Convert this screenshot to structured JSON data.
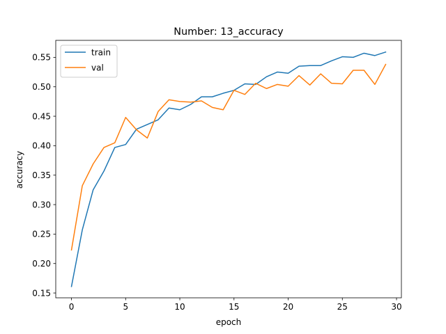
{
  "chart_data": {
    "type": "line",
    "title": "Number: 13_accuracy",
    "xlabel": "epoch",
    "ylabel": "accuracy",
    "xlim": [
      -1.45,
      30.45
    ],
    "ylim": [
      0.1418,
      0.5788
    ],
    "xticks": [
      0,
      5,
      10,
      15,
      20,
      25,
      30
    ],
    "yticks": [
      0.15,
      0.2,
      0.25,
      0.3,
      0.35,
      0.4,
      0.45,
      0.5,
      0.55
    ],
    "ytick_labels": [
      "0.15",
      "0.20",
      "0.25",
      "0.30",
      "0.35",
      "0.40",
      "0.45",
      "0.50",
      "0.55"
    ],
    "grid": false,
    "legend": "top-left",
    "x": [
      0,
      1,
      2,
      3,
      4,
      5,
      6,
      7,
      8,
      9,
      10,
      11,
      12,
      13,
      14,
      15,
      16,
      17,
      18,
      19,
      20,
      21,
      22,
      23,
      24,
      25,
      26,
      27,
      28,
      29
    ],
    "series": [
      {
        "name": "train",
        "color": "#1f77b4",
        "values": [
          0.161,
          0.257,
          0.325,
          0.357,
          0.397,
          0.402,
          0.428,
          0.436,
          0.444,
          0.464,
          0.461,
          0.47,
          0.483,
          0.483,
          0.489,
          0.494,
          0.505,
          0.504,
          0.517,
          0.525,
          0.523,
          0.535,
          0.536,
          0.536,
          0.544,
          0.551,
          0.55,
          0.557,
          0.553,
          0.559
        ]
      },
      {
        "name": "val",
        "color": "#ff7f0e",
        "values": [
          0.223,
          0.332,
          0.369,
          0.397,
          0.405,
          0.448,
          0.427,
          0.413,
          0.458,
          0.478,
          0.475,
          0.474,
          0.476,
          0.465,
          0.461,
          0.494,
          0.487,
          0.506,
          0.497,
          0.504,
          0.501,
          0.519,
          0.503,
          0.522,
          0.506,
          0.505,
          0.528,
          0.528,
          0.504,
          0.538
        ]
      }
    ]
  }
}
